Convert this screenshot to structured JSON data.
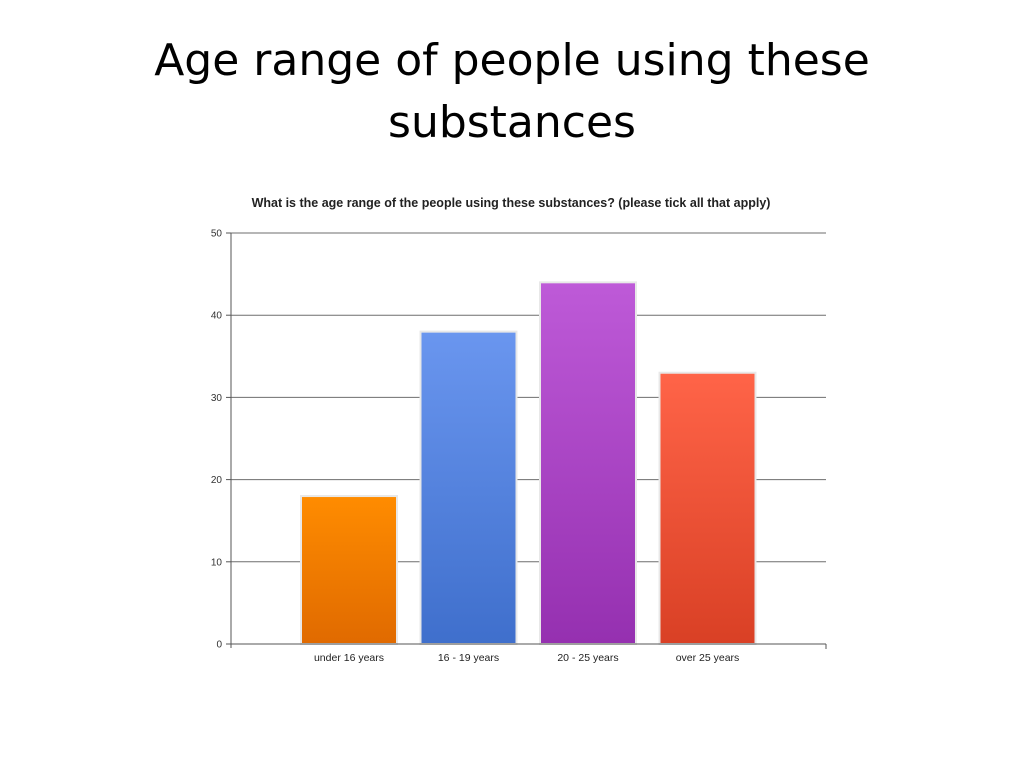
{
  "slide": {
    "title_line1": "Age range of people using these",
    "title_line2": "substances"
  },
  "chart_data": {
    "type": "bar",
    "title": "What is the age range of the people using these substances? (please tick all that apply)",
    "xlabel": "",
    "ylabel": "",
    "categories": [
      "under 16 years",
      "16 - 19 years",
      "20 - 25 years",
      "over 25 years"
    ],
    "values": [
      18,
      38,
      44,
      33
    ],
    "ylim": [
      0,
      50
    ],
    "yticks": [
      0,
      10,
      20,
      30,
      40,
      50
    ],
    "grid": true,
    "legend": "none",
    "colors": [
      {
        "top": "#ff8c00",
        "bottom": "#e06a00"
      },
      {
        "top": "#6a96ef",
        "bottom": "#3f6fcc"
      },
      {
        "top": "#be5ad8",
        "bottom": "#9530b0"
      },
      {
        "top": "#ff6448",
        "bottom": "#d94025"
      }
    ]
  }
}
